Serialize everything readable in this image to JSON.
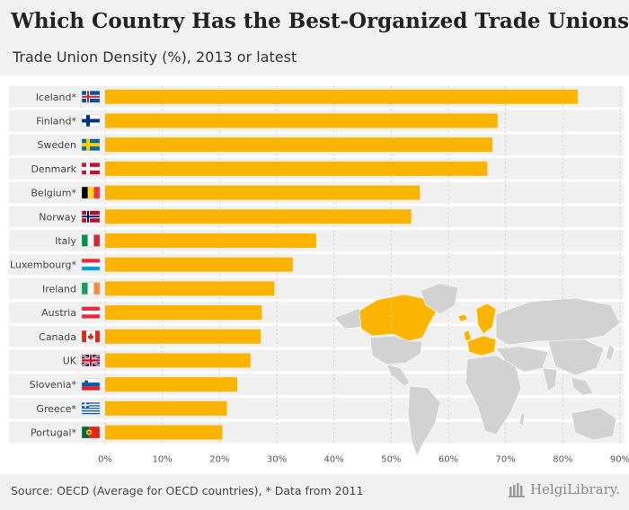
{
  "header": {
    "title": "Which Country Has the Best-Organized Trade Unions?",
    "subtitle": "Trade Union Density (%), 2013 or latest"
  },
  "footer": {
    "source": "Source: OECD (Average for OECD countries), * Data from 2011",
    "brand": "HelgiLibrary."
  },
  "colors": {
    "bar": "#fbb500",
    "row_bg": "#f0f0f0",
    "map_land": "#d2d2d2",
    "map_highlight": "#fbb500"
  },
  "chart_data": {
    "type": "bar",
    "orientation": "horizontal",
    "title": "Which Country Has the Best-Organized Trade Unions?",
    "subtitle": "Trade Union Density (%), 2013 or latest",
    "categories": [
      "Iceland*",
      "Finland*",
      "Sweden",
      "Denmark",
      "Belgium*",
      "Norway",
      "Italy",
      "Luxembourg*",
      "Ireland",
      "Austria",
      "Canada",
      "UK",
      "Slovenia*",
      "Greece*",
      "Portugal*"
    ],
    "flags": [
      "iceland",
      "finland",
      "sweden",
      "denmark",
      "belgium",
      "norway",
      "italy",
      "luxembourg",
      "ireland",
      "austria",
      "canada",
      "uk",
      "slovenia",
      "greece",
      "portugal"
    ],
    "values": [
      82.6,
      68.6,
      67.7,
      66.8,
      55.0,
      53.5,
      36.9,
      32.8,
      29.6,
      27.4,
      27.2,
      25.4,
      23.1,
      21.3,
      20.5
    ],
    "xlim": [
      0,
      90
    ],
    "xticks": [
      0,
      10,
      20,
      30,
      40,
      50,
      60,
      70,
      80,
      90
    ],
    "xtick_labels": [
      "0%",
      "10%",
      "20%",
      "30%",
      "40%",
      "50%",
      "60%",
      "70%",
      "80%",
      "90%"
    ],
    "xlabel": "",
    "ylabel": "",
    "grid": true
  }
}
